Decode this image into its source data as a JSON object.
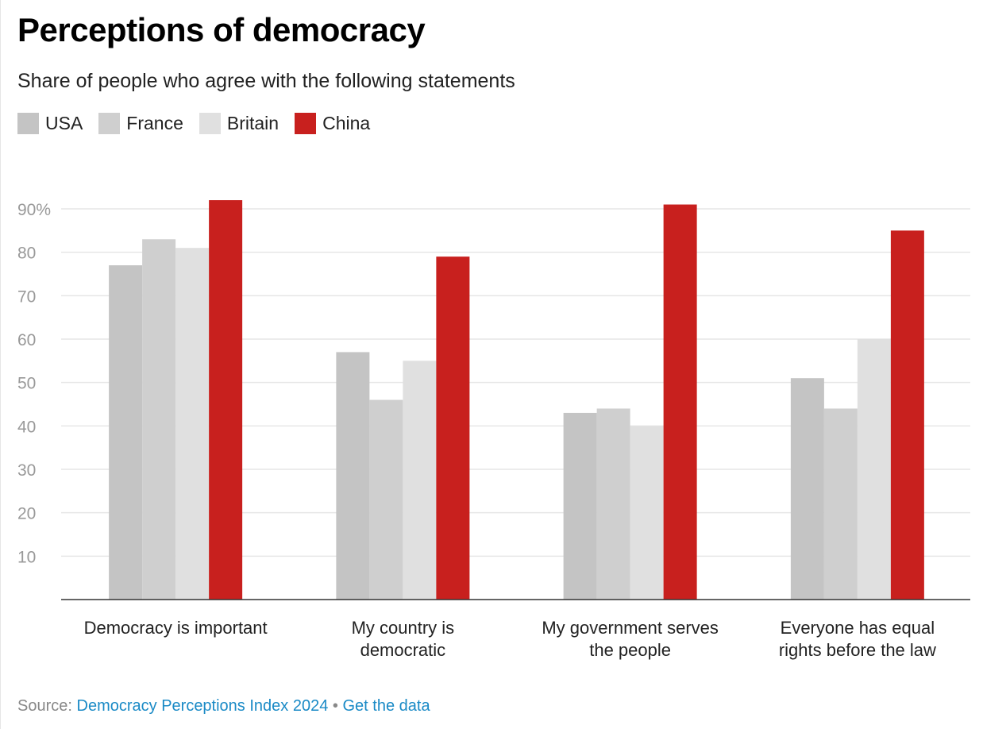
{
  "title": "Perceptions of democracy",
  "subtitle": "Share of people who agree with the following statements",
  "source": {
    "label": "Source:",
    "link": "Democracy Perceptions Index 2024",
    "sep": "•",
    "data_link": "Get the data"
  },
  "chart_data": {
    "type": "bar",
    "title": "Perceptions of democracy",
    "subtitle": "Share of people who agree with the following statements",
    "categories": [
      [
        "Democracy is important"
      ],
      [
        "My country is",
        "democratic"
      ],
      [
        "My government serves",
        "the people"
      ],
      [
        "Everyone has equal",
        "rights before the law"
      ]
    ],
    "series": [
      {
        "name": "USA",
        "color": "#c4c4c4",
        "values": [
          77,
          57,
          43,
          51
        ]
      },
      {
        "name": "France",
        "color": "#cfcfcf",
        "values": [
          83,
          46,
          44,
          44
        ]
      },
      {
        "name": "Britain",
        "color": "#e0e0e0",
        "values": [
          81,
          55,
          40,
          60
        ]
      },
      {
        "name": "China",
        "color": "#c8201e",
        "values": [
          92,
          79,
          91,
          85
        ]
      }
    ],
    "yticks": [
      "10",
      "20",
      "30",
      "40",
      "50",
      "60",
      "70",
      "80",
      "90%"
    ],
    "ytick_values": [
      10,
      20,
      30,
      40,
      50,
      60,
      70,
      80,
      90
    ],
    "ylim": [
      0,
      90
    ],
    "grid": true,
    "legend": "top-left",
    "unit": "%"
  }
}
